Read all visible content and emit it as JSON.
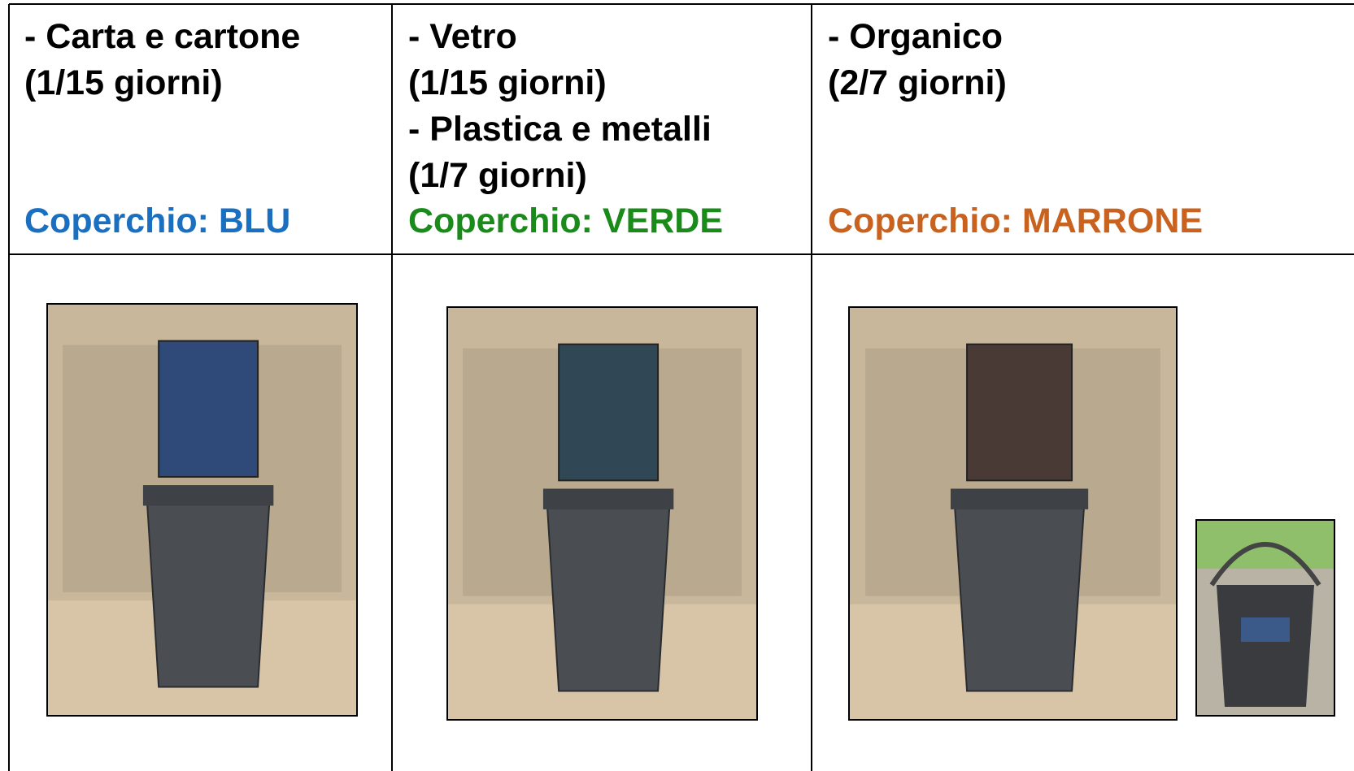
{
  "table": {
    "columns": [
      {
        "lines": [
          "- Carta e cartone",
          "(1/15 giorni)"
        ],
        "lid": "Coperchio: BLU"
      },
      {
        "lines": [
          "- Vetro",
          "(1/15 giorni)",
          "- Plastica e metalli",
          "(1/7 giorni)"
        ],
        "lid": "Coperchio: VERDE"
      },
      {
        "lines": [
          "- Organico",
          "(2/7 giorni)"
        ],
        "lid": "Coperchio: MARRONE"
      }
    ]
  }
}
